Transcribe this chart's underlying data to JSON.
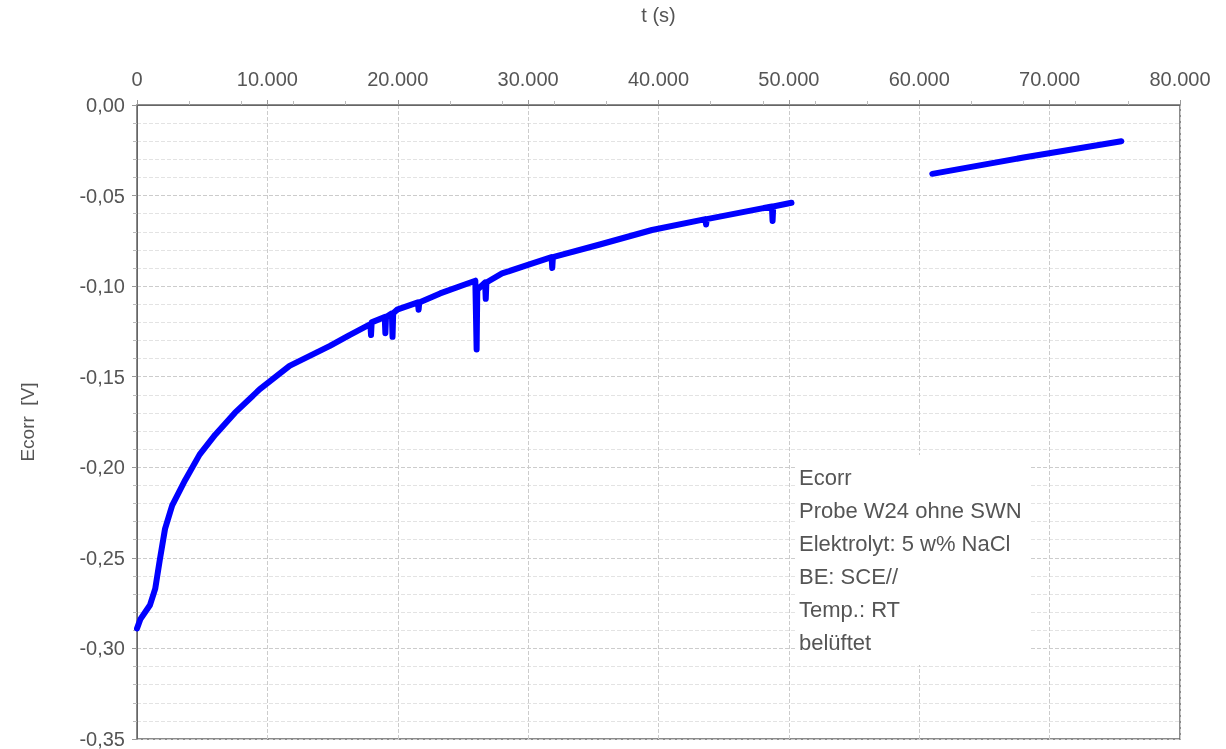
{
  "chart_data": {
    "type": "line",
    "xlabel": "t (s)",
    "ylabel": "Ecorr  [V]",
    "xlim": [
      0,
      80000
    ],
    "xticks": [
      0,
      {
        "value": 10000,
        "label": "10.000"
      },
      {
        "value": 20000,
        "label": "20.000"
      },
      {
        "value": 30000,
        "label": "30.000"
      },
      {
        "value": 40000,
        "label": "40.000"
      },
      {
        "value": 50000,
        "label": "50.000"
      },
      {
        "value": 60000,
        "label": "60.000"
      },
      {
        "value": 70000,
        "label": "70.000"
      },
      {
        "value": 80000,
        "label": "80.000"
      }
    ],
    "ylim": [
      -0.35,
      0
    ],
    "yticks": [
      {
        "value": -0.35,
        "label": "-0,35"
      },
      {
        "value": -0.3,
        "label": "-0,30"
      },
      {
        "value": -0.25,
        "label": "-0,25"
      },
      {
        "value": -0.2,
        "label": "-0,20"
      },
      {
        "value": -0.15,
        "label": "-0,15"
      },
      {
        "value": -0.1,
        "label": "-0,10"
      },
      {
        "value": -0.05,
        "label": "-0,05"
      },
      {
        "value": 0,
        "label": "0,00"
      }
    ],
    "grid": true,
    "marker": "none",
    "line_style": "solid",
    "annotations": [
      "Ecorr",
      "Probe W24 ohne SWN",
      "Elektrolyt: 5 w% NaCl",
      "BE: SCE//",
      "Temp.: RT",
      "belüftet"
    ],
    "series": [
      {
        "color": "#0000ff",
        "x": [
          0,
          250,
          1000,
          1400,
          1750,
          2150,
          2700,
          3700,
          4800,
          6000,
          7500,
          9400,
          11700,
          14800,
          16300,
          17900,
          17950,
          18000,
          19000,
          19050,
          19100,
          19550,
          19600,
          19650,
          19950,
          21550,
          21600,
          21650,
          23250,
          25950,
          26050,
          26100,
          26700,
          26750,
          26800,
          28000,
          30100,
          31800,
          31850,
          31900,
          35500,
          39500,
          43600,
          43650,
          43700,
          48700,
          48750,
          48800,
          50200,
          55000,
          61000,
          68000,
          75500
        ],
        "values": [
          -0.289,
          -0.284,
          -0.276,
          -0.267,
          -0.251,
          -0.234,
          -0.221,
          -0.207,
          -0.193,
          -0.182,
          -0.17,
          -0.157,
          -0.144,
          -0.133,
          -0.127,
          -0.121,
          -0.127,
          -0.12,
          -0.117,
          -0.126,
          -0.117,
          -0.115,
          -0.128,
          -0.115,
          -0.113,
          -0.109,
          -0.113,
          -0.109,
          -0.104,
          -0.097,
          -0.135,
          -0.102,
          -0.098,
          -0.107,
          -0.098,
          -0.093,
          -0.088,
          -0.084,
          -0.09,
          -0.084,
          -0.077,
          -0.069,
          -0.063,
          -0.066,
          -0.063,
          -0.056,
          -0.064,
          -0.056,
          -0.054,
          null,
          -0.038,
          -0.029,
          -0.02
        ]
      }
    ]
  }
}
